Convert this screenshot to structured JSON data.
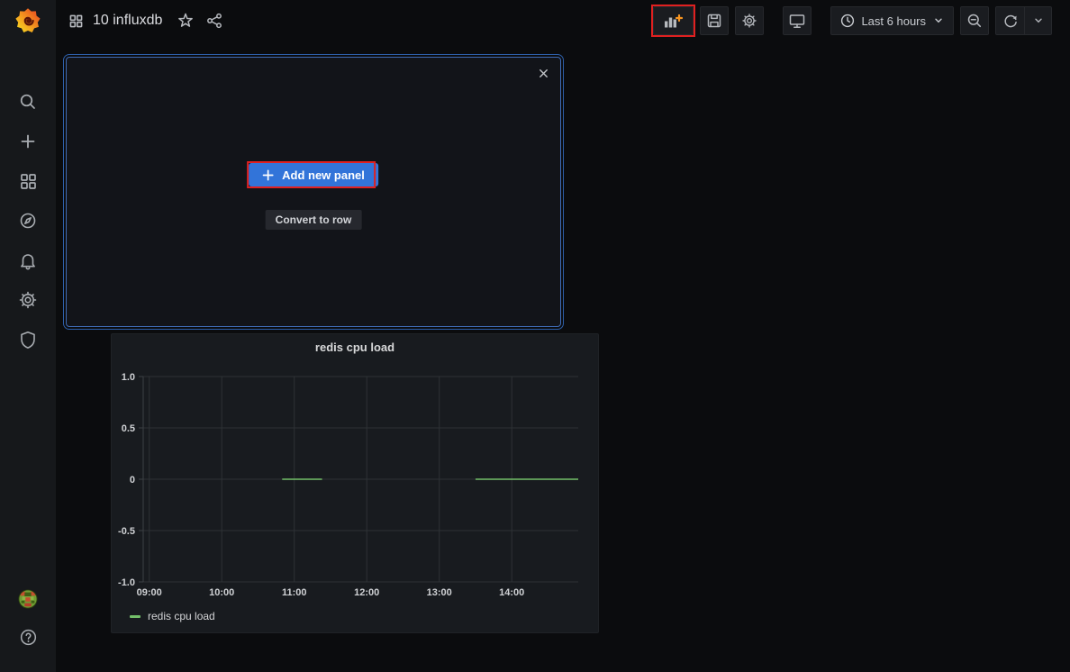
{
  "app": {
    "name": "Grafana"
  },
  "colors": {
    "accent_blue": "#3274d9",
    "annotation_red": "#e02020",
    "series_green": "#73bf69",
    "panel_bg": "#181b1f",
    "canvas_bg": "#0b0c0e",
    "sidebar_bg": "#16181b"
  },
  "sidebar": {
    "logo_icon": "grafana-logo",
    "items": [
      {
        "id": "search",
        "icon": "search-icon"
      },
      {
        "id": "create",
        "icon": "plus-icon"
      },
      {
        "id": "dashboards",
        "icon": "apps-icon"
      },
      {
        "id": "explore",
        "icon": "compass-icon"
      },
      {
        "id": "alerting",
        "icon": "bell-icon"
      },
      {
        "id": "configuration",
        "icon": "gear-icon"
      },
      {
        "id": "server-admin",
        "icon": "shield-icon"
      }
    ],
    "bottom_items": [
      {
        "id": "profile",
        "icon": "avatar"
      },
      {
        "id": "help",
        "icon": "question-circle-icon"
      }
    ]
  },
  "header": {
    "breadcrumb_icon": "apps-icon",
    "title": "10 influxdb",
    "star_icon": "star-icon",
    "share_icon": "share-icon"
  },
  "toolbar": {
    "add_panel_icon": "bar-chart-plus-icon",
    "save_icon": "save-icon",
    "settings_icon": "gear-icon",
    "tv_icon": "monitor-icon",
    "time_picker": {
      "icon": "clock-icon",
      "label": "Last 6 hours",
      "caret_icon": "chevron-down-icon"
    },
    "zoom_out_icon": "search-minus-icon",
    "refresh_icon": "sync-icon",
    "refresh_caret_icon": "chevron-down-icon"
  },
  "widget": {
    "close_icon": "close-icon",
    "add_button": {
      "icon": "plus-icon",
      "label": "Add new panel"
    },
    "convert_button": {
      "label": "Convert to row"
    }
  },
  "annotations": {
    "color": "#e02020",
    "targets": [
      "toolbar-add-panel-button",
      "add-new-panel-button"
    ]
  },
  "chart_data": {
    "type": "line",
    "title": "redis cpu load",
    "x_range": [
      "08:55",
      "14:55"
    ],
    "ylim": [
      -1,
      1
    ],
    "x_ticks": [
      "09:00",
      "10:00",
      "11:00",
      "12:00",
      "13:00",
      "14:00"
    ],
    "y_ticks": [
      {
        "value": 1,
        "label": "1.0"
      },
      {
        "value": 0.5,
        "label": "0.5"
      },
      {
        "value": 0,
        "label": "0"
      },
      {
        "value": -0.5,
        "label": "-0.5"
      },
      {
        "value": -1,
        "label": "-1.0"
      }
    ],
    "grid": true,
    "grid_color": "#2e3236",
    "axis_color": "#3c4044",
    "legend_position": "bottom-left",
    "series": [
      {
        "name": "redis cpu load",
        "color": "#73bf69",
        "segments": [
          {
            "from": "10:50",
            "to": "11:23",
            "value": 0
          },
          {
            "from": "13:30",
            "to": "14:55",
            "value": 0
          }
        ]
      }
    ]
  }
}
